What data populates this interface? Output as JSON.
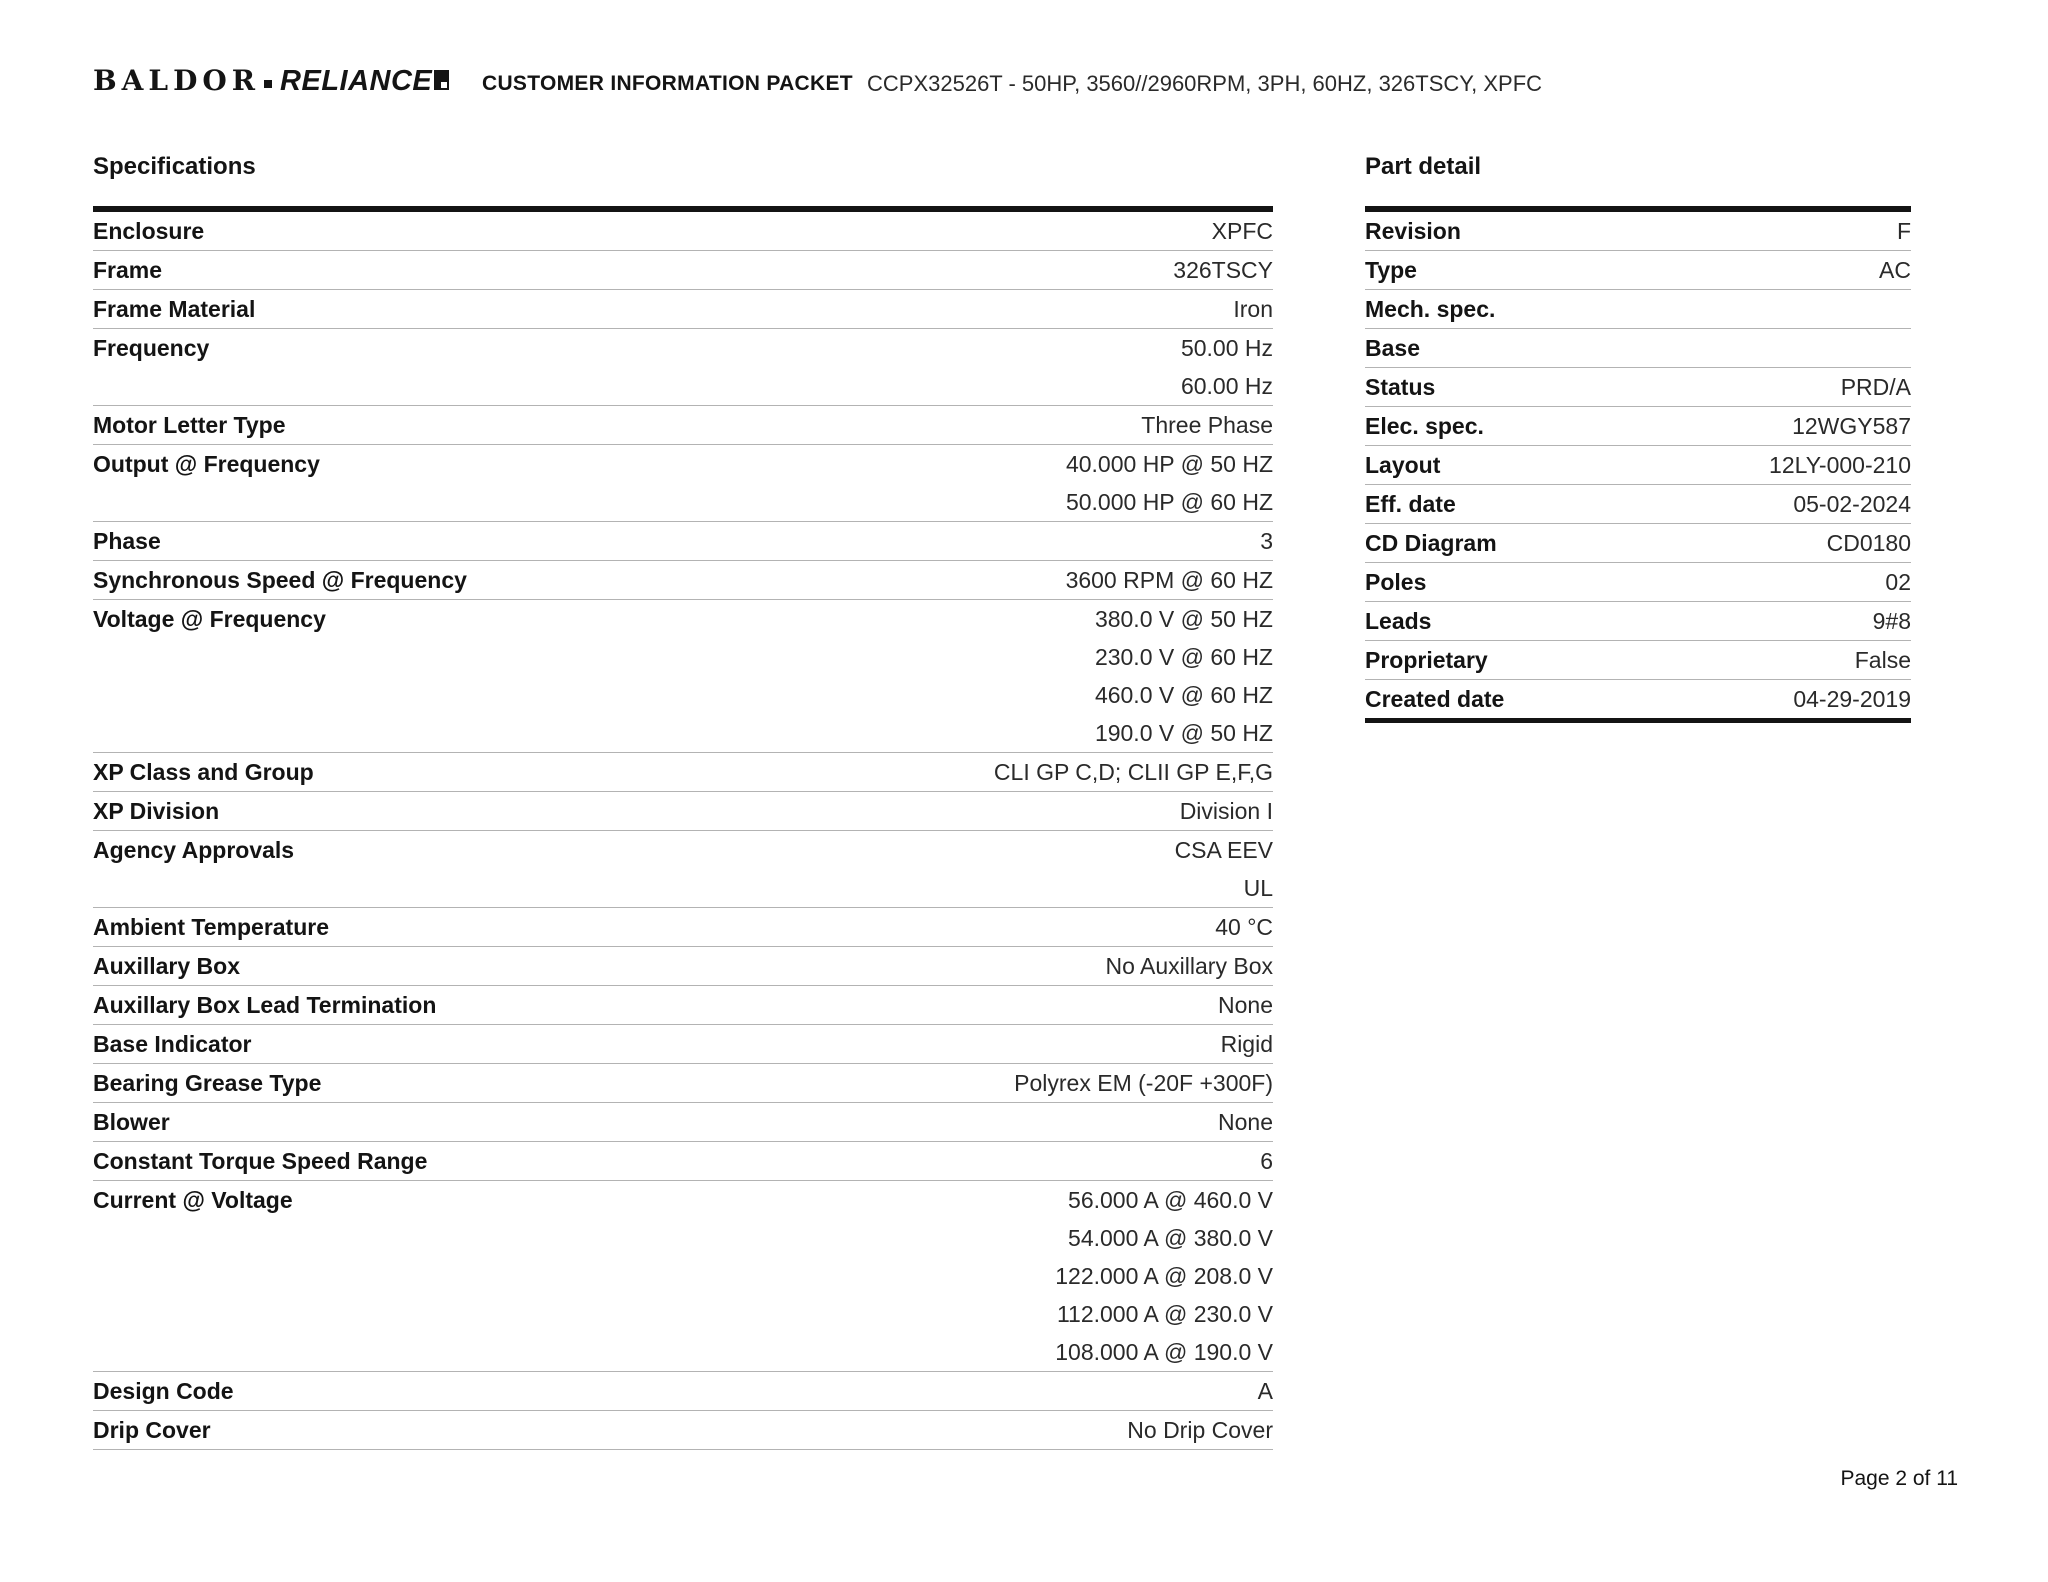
{
  "header": {
    "logo_baldor": "BALDOR",
    "logo_reliance": "RELIANCE",
    "doc_title": "CUSTOMER INFORMATION PACKET",
    "part_title": "CCPX32526T - 50HP, 3560//2960RPM, 3PH, 60HZ, 326TSCY, XPFC"
  },
  "colors": {
    "text": "#1a1a1a",
    "rule_thin": "#b3b3b3",
    "rule_thick": "#141414"
  },
  "specifications": {
    "title": "Specifications",
    "rows": [
      {
        "label": "Enclosure",
        "values": [
          "XPFC"
        ]
      },
      {
        "label": "Frame",
        "values": [
          "326TSCY"
        ]
      },
      {
        "label": "Frame Material",
        "values": [
          "Iron"
        ]
      },
      {
        "label": "Frequency",
        "values": [
          "50.00 Hz",
          "60.00 Hz"
        ]
      },
      {
        "label": "Motor Letter Type",
        "values": [
          "Three Phase"
        ]
      },
      {
        "label": "Output @ Frequency",
        "values": [
          "40.000 HP @ 50 HZ",
          "50.000 HP @ 60 HZ"
        ]
      },
      {
        "label": "Phase",
        "values": [
          "3"
        ]
      },
      {
        "label": "Synchronous Speed @ Frequency",
        "values": [
          "3600 RPM @ 60 HZ"
        ]
      },
      {
        "label": "Voltage @ Frequency",
        "values": [
          "380.0 V @ 50 HZ",
          "230.0 V @ 60 HZ",
          "460.0 V @ 60 HZ",
          "190.0 V @ 50 HZ"
        ]
      },
      {
        "label": "XP Class and Group",
        "values": [
          "CLI GP C,D; CLII GP E,F,G"
        ]
      },
      {
        "label": "XP Division",
        "values": [
          "Division I"
        ]
      },
      {
        "label": "Agency Approvals",
        "values": [
          "CSA EEV",
          "UL"
        ]
      },
      {
        "label": "Ambient Temperature",
        "values": [
          "40 °C"
        ]
      },
      {
        "label": "Auxillary Box",
        "values": [
          "No Auxillary Box"
        ]
      },
      {
        "label": "Auxillary Box Lead Termination",
        "values": [
          "None"
        ]
      },
      {
        "label": "Base Indicator",
        "values": [
          "Rigid"
        ]
      },
      {
        "label": "Bearing Grease Type",
        "values": [
          "Polyrex EM (-20F +300F)"
        ]
      },
      {
        "label": "Blower",
        "values": [
          "None"
        ]
      },
      {
        "label": "Constant Torque Speed Range",
        "values": [
          "6"
        ]
      },
      {
        "label": "Current @ Voltage",
        "values": [
          "56.000 A @ 460.0 V",
          "54.000 A @ 380.0 V",
          "122.000 A @ 208.0 V",
          "112.000 A @ 230.0 V",
          "108.000 A @ 190.0 V"
        ]
      },
      {
        "label": "Design Code",
        "values": [
          "A"
        ]
      },
      {
        "label": "Drip Cover",
        "values": [
          "No Drip Cover"
        ]
      }
    ]
  },
  "part_detail": {
    "title": "Part detail",
    "rows": [
      {
        "label": "Revision",
        "values": [
          "F"
        ]
      },
      {
        "label": "Type",
        "values": [
          "AC"
        ]
      },
      {
        "label": "Mech. spec.",
        "values": [
          ""
        ]
      },
      {
        "label": "Base",
        "values": [
          ""
        ]
      },
      {
        "label": "Status",
        "values": [
          "PRD/A"
        ]
      },
      {
        "label": "Elec. spec.",
        "values": [
          "12WGY587"
        ]
      },
      {
        "label": "Layout",
        "values": [
          "12LY-000-210"
        ]
      },
      {
        "label": "Eff. date",
        "values": [
          "05-02-2024"
        ]
      },
      {
        "label": "CD Diagram",
        "values": [
          "CD0180"
        ]
      },
      {
        "label": "Poles",
        "values": [
          "02"
        ]
      },
      {
        "label": "Leads",
        "values": [
          "9#8"
        ]
      },
      {
        "label": "Proprietary",
        "values": [
          "False"
        ]
      },
      {
        "label": "Created date",
        "values": [
          "04-29-2019"
        ]
      }
    ]
  },
  "footer": {
    "page_label": "Page 2 of 11"
  }
}
